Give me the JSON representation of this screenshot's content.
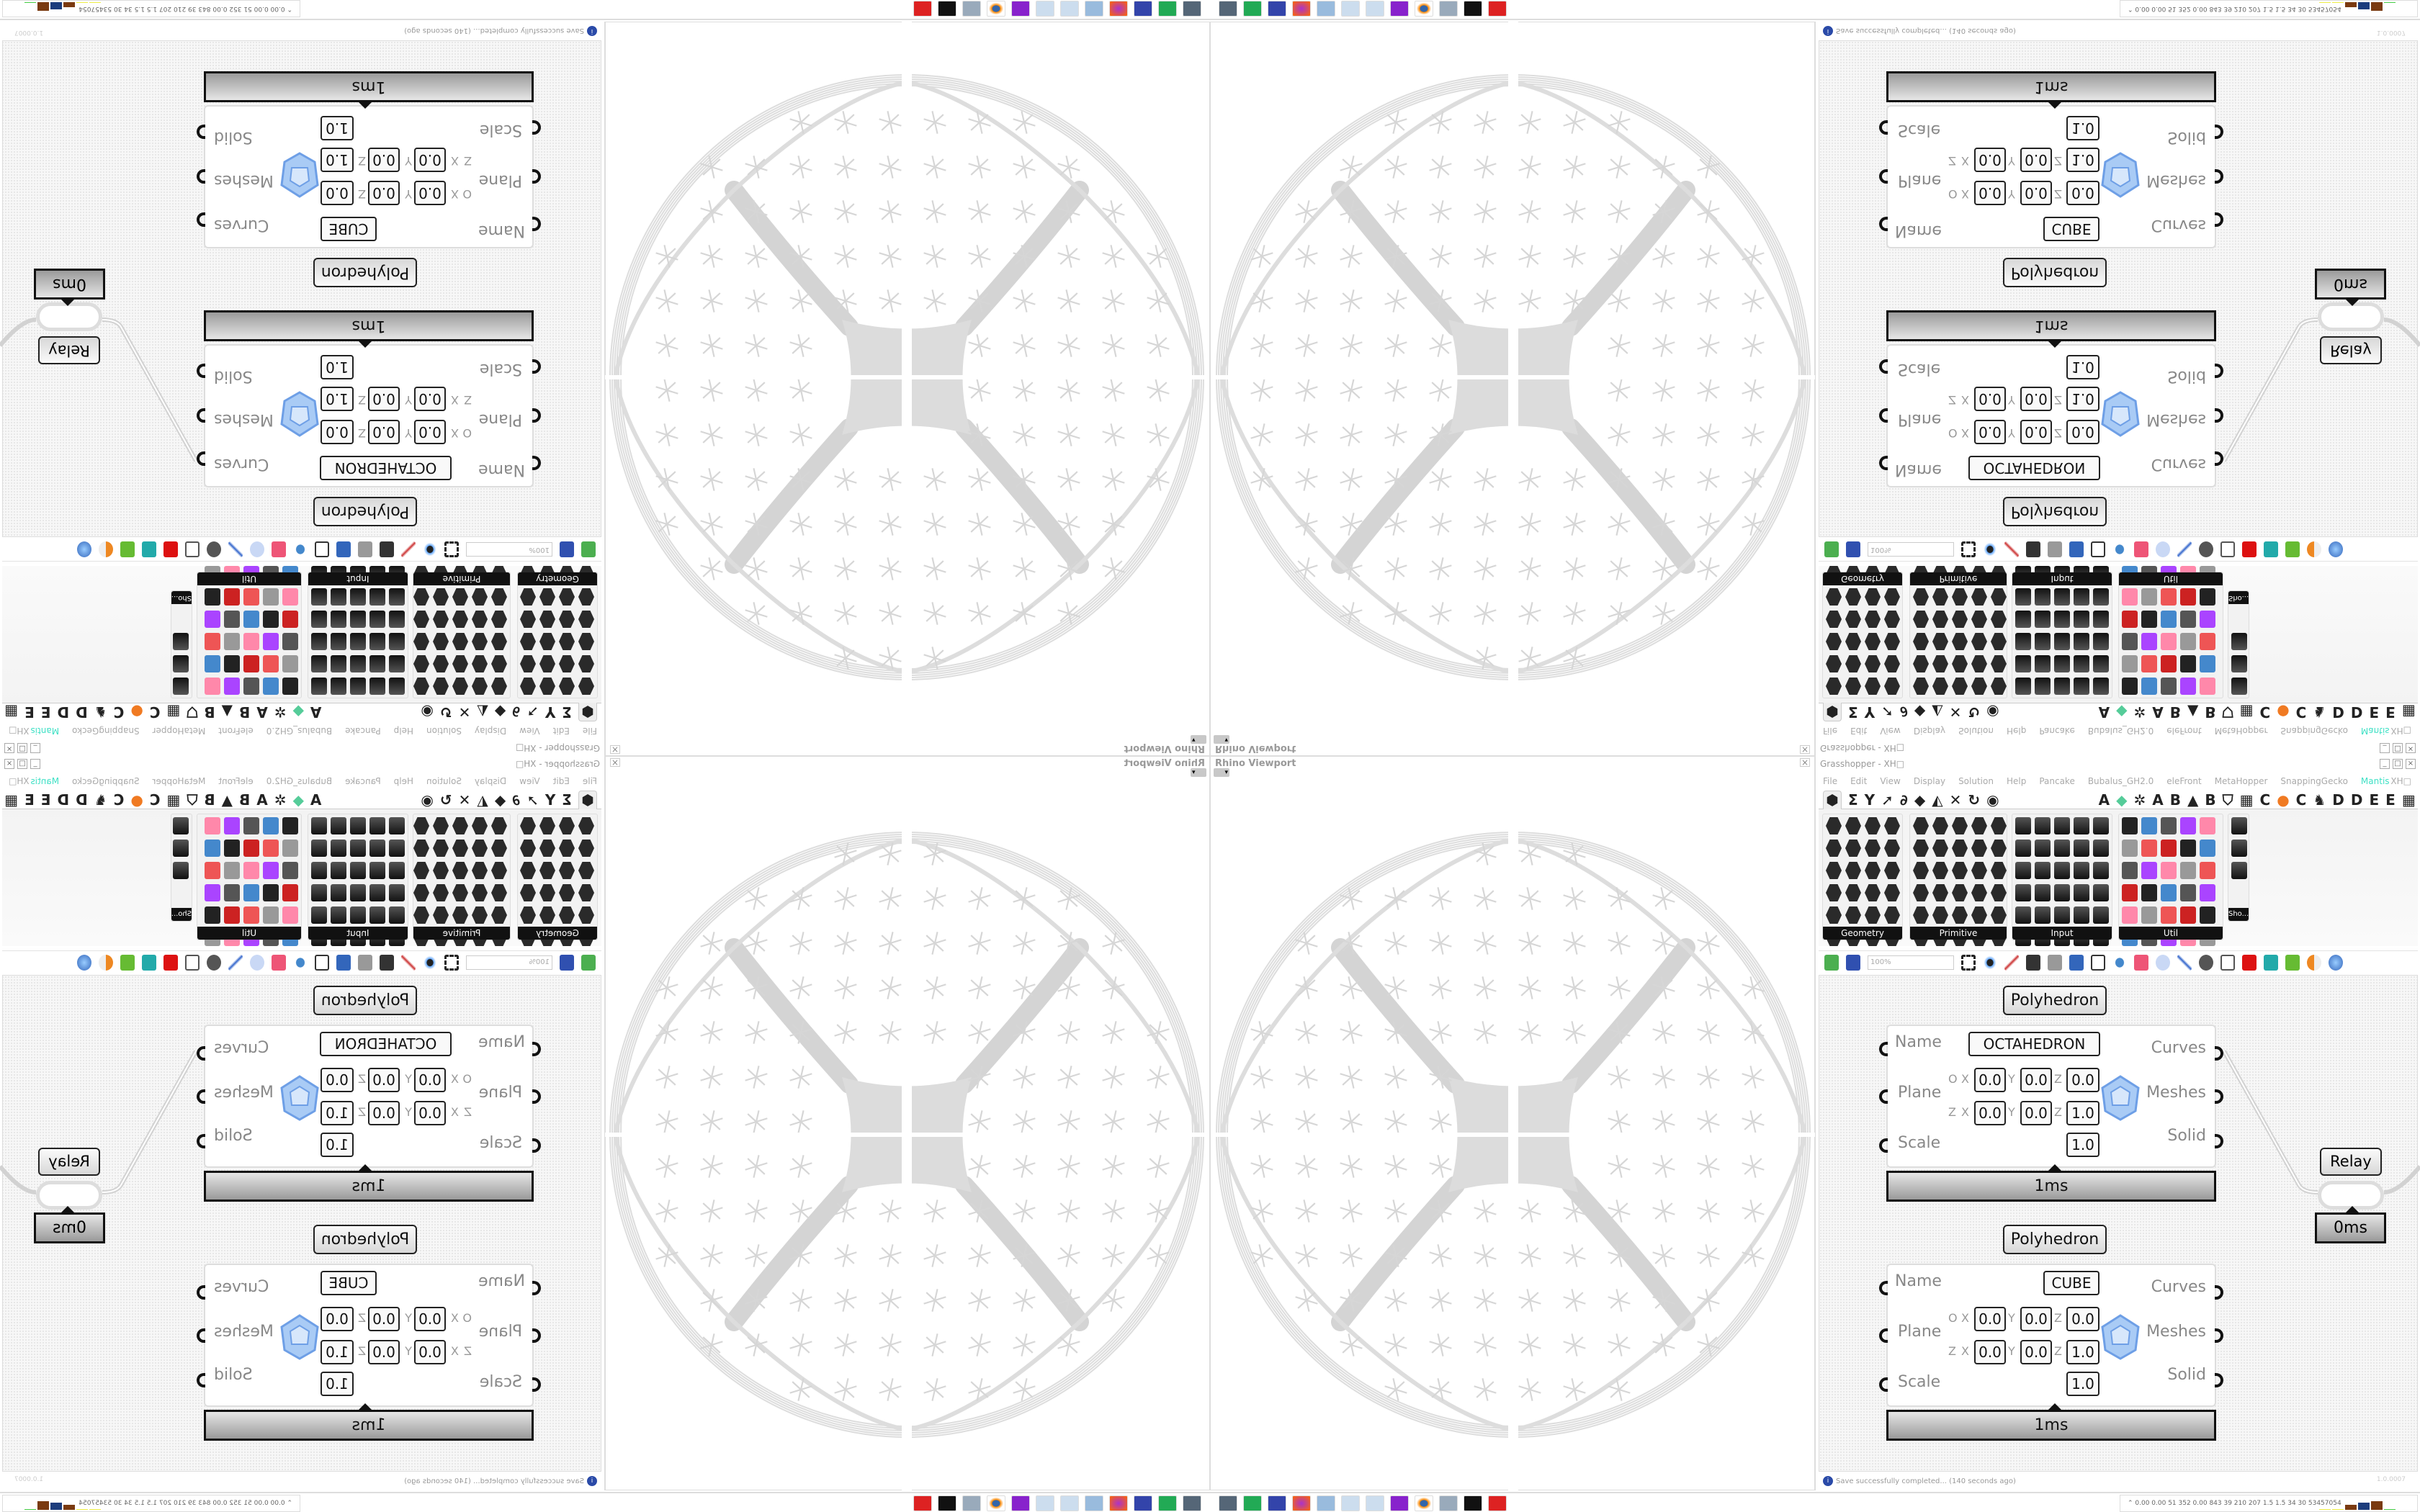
{
  "viewport": {
    "title": "Rhino Viewport",
    "close_icon": "close-icon"
  },
  "grasshopper": {
    "title": "Grasshopper - XH□",
    "menu": [
      "File",
      "Edit",
      "View",
      "Display",
      "Solution",
      "Help",
      "Pancake",
      "Bubalus_GH2.0",
      "eleFront",
      "MetaHopper",
      "SnappingGecko",
      "Mantis"
    ],
    "menu_right": "XH□",
    "tab_letters": [
      "A",
      "A",
      "B",
      "B",
      "C",
      "C",
      "D",
      "D",
      "E",
      "E"
    ],
    "ribbon_panels": [
      "Geometry",
      "Primitive",
      "Input",
      "Util",
      "Sho..."
    ],
    "zoom": "100%",
    "status": "Save successfully completed... (140 seconds ago)",
    "version": "1.0.0007"
  },
  "components": [
    {
      "label": "Polyhedron",
      "name": "OCTAHEDRON",
      "inputs": [
        "Name",
        "Plane",
        "Scale"
      ],
      "outputs": [
        "Curves",
        "Meshes",
        "Solid"
      ],
      "origin_label": "O",
      "zaxis_label": "Z",
      "axes": [
        "X",
        "Y",
        "Z"
      ],
      "origin": [
        "0.0",
        "0.0",
        "0.0"
      ],
      "zaxis": [
        "0.0",
        "0.0",
        "1.0"
      ],
      "scale": "1.0",
      "time": "1ms"
    },
    {
      "label": "Polyhedron",
      "name": "CUBE",
      "inputs": [
        "Name",
        "Plane",
        "Scale"
      ],
      "outputs": [
        "Curves",
        "Meshes",
        "Solid"
      ],
      "origin_label": "O",
      "zaxis_label": "Z",
      "axes": [
        "X",
        "Y",
        "Z"
      ],
      "origin": [
        "0.0",
        "0.0",
        "0.0"
      ],
      "zaxis": [
        "0.0",
        "0.0",
        "1.0"
      ],
      "scale": "1.0",
      "time": "1ms"
    }
  ],
  "relay": {
    "label": "Relay",
    "time": "0ms"
  },
  "taskbar": {
    "stats": "0.00 0.00  51  352  0.00  843  39  210  207  1.5  1.5  34  30  53457054"
  },
  "colors": {
    "mantis_tab": "#3fe0c5",
    "canvas": "#f7f7f7",
    "wire": "#d0d0d0",
    "mesh_icon": "#8fb8f0"
  }
}
